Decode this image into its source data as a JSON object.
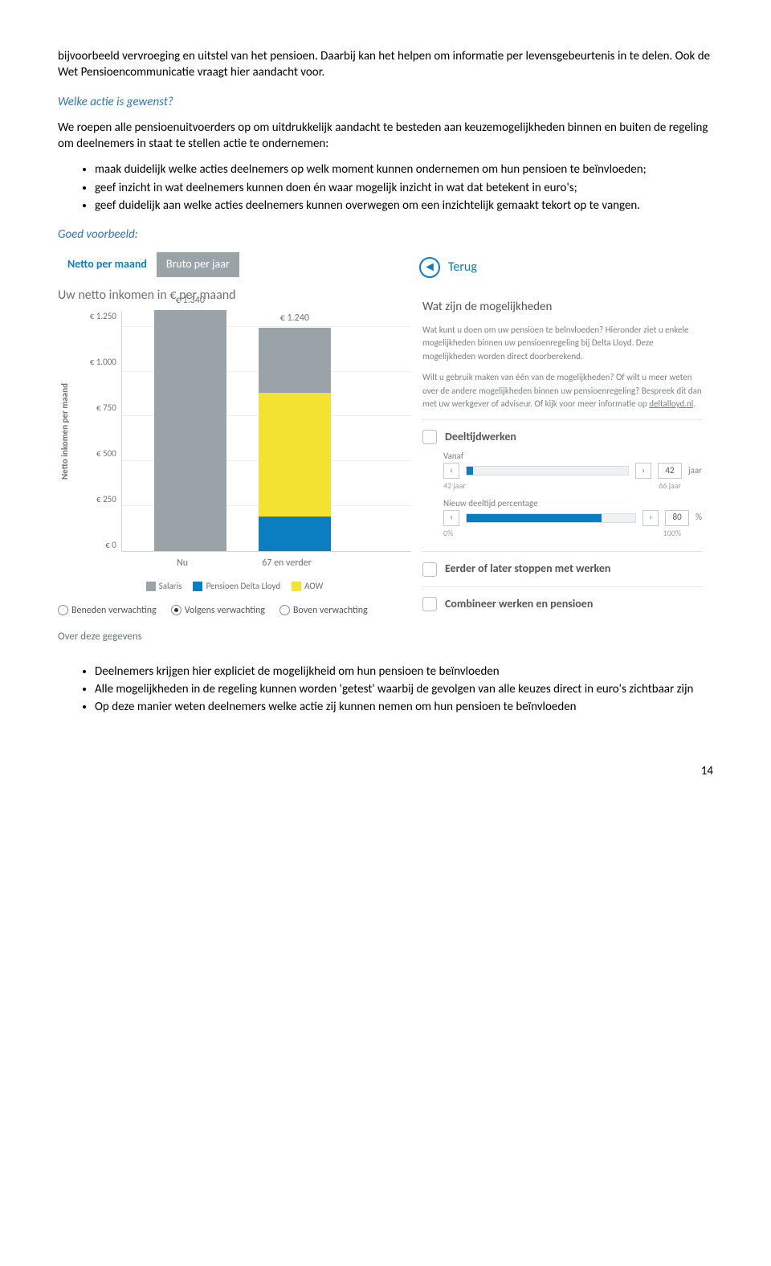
{
  "intro_para": "bijvoorbeeld vervroeging en uitstel van het pensioen. Daarbij kan het helpen om informatie per levensgebeurtenis in te delen. Ook de Wet Pensioencommunicatie vraagt hier aandacht voor.",
  "q1": "Welke actie is gewenst?",
  "para2": "We roepen alle pensioenuitvoerders op om uitdrukkelijk aandacht te besteden aan keuzemogelijkheden binnen en buiten de regeling om deelnemers in staat te stellen actie te ondernemen:",
  "bullets1": [
    "maak duidelijk welke acties deelnemers op welk moment kunnen ondernemen om hun pensioen te beïnvloeden;",
    "geef inzicht in wat deelnemers kunnen doen én waar mogelijk inzicht in wat dat betekent in euro's;",
    "geef duidelijk aan welke acties deelnemers kunnen overwegen om een inzichtelijk gemaakt tekort op te vangen."
  ],
  "q2": "Goed voorbeeld:",
  "left": {
    "tab_active": "Netto per maand",
    "tab_inactive": "Bruto per jaar",
    "title": "Uw netto inkomen in € per maand",
    "yticks": [
      "€ 1.250",
      "€ 1.000",
      "€ 750",
      "€ 500",
      "€ 250",
      "€ 0"
    ],
    "ylabel": "Netto inkomen per maand",
    "ylim_max": 1340,
    "bars": [
      {
        "label": "Nu",
        "value_label": "€ 1.340",
        "segments": [
          {
            "color": "#9aa4a8",
            "value": 1340
          }
        ]
      },
      {
        "label": "67 en verder",
        "value_label": "€ 1.240",
        "segments": [
          {
            "color": "#0b7ec2",
            "value": 190
          },
          {
            "color": "#f4e233",
            "value": 690
          },
          {
            "color": "#9aa4a8",
            "value": 360
          }
        ]
      }
    ],
    "legend": [
      {
        "color": "#9aa4a8",
        "label": "Salaris"
      },
      {
        "color": "#0b7ec2",
        "label": "Pensioen Delta Lloyd"
      },
      {
        "color": "#f4e233",
        "label": "AOW"
      }
    ],
    "radios": [
      {
        "label": "Beneden verwachting",
        "checked": false
      },
      {
        "label": "Volgens verwachting",
        "checked": true
      },
      {
        "label": "Boven verwachting",
        "checked": false
      }
    ],
    "over": "Over deze gegevens"
  },
  "right": {
    "back": "Terug",
    "heading": "Wat zijn de mogelijkheden",
    "p1": "Wat kunt u doen om uw pensioen te beïnvloeden? Hieronder ziet u enkele mogelijkheden binnen uw pensioenregeling bij Delta Lloyd. Deze mogelijkheden worden direct doorberekend.",
    "p2a": "Wilt u gebruik maken van één van de mogelijkheden? Of wilt u meer weten over de andere mogelijkheden binnen uw pensioenregeling? Bespreek dit dan met uw werkgever of adviseur. Of kijk voor meer informatie op ",
    "p2link": "deltalloyd.nl",
    "opt1": {
      "title": "Deeltijdwerken",
      "vanaf": "Vanaf",
      "s1": {
        "min": "42 jaar",
        "max": "66 jaar",
        "value": "42",
        "unit": "jaar",
        "fill_left": 0,
        "fill_width": 4
      },
      "s2_label": "Nieuw deeltijd percentage",
      "s2": {
        "min": "0%",
        "max": "100%",
        "value": "80",
        "unit": "%",
        "fill_left": 0,
        "fill_width": 80
      }
    },
    "opt2": "Eerder of later stoppen met werken",
    "opt3": "Combineer werken en pensioen"
  },
  "bullets2": [
    "Deelnemers krijgen hier expliciet de mogelijkheid om hun pensioen te beïnvloeden",
    "Alle mogelijkheden in de regeling kunnen worden 'getest' waarbij de gevolgen van alle keuzes direct in euro's zichtbaar zijn",
    "Op deze manier weten deelnemers welke actie zij kunnen nemen om hun pensioen te beïnvloeden"
  ],
  "page_num": "14"
}
